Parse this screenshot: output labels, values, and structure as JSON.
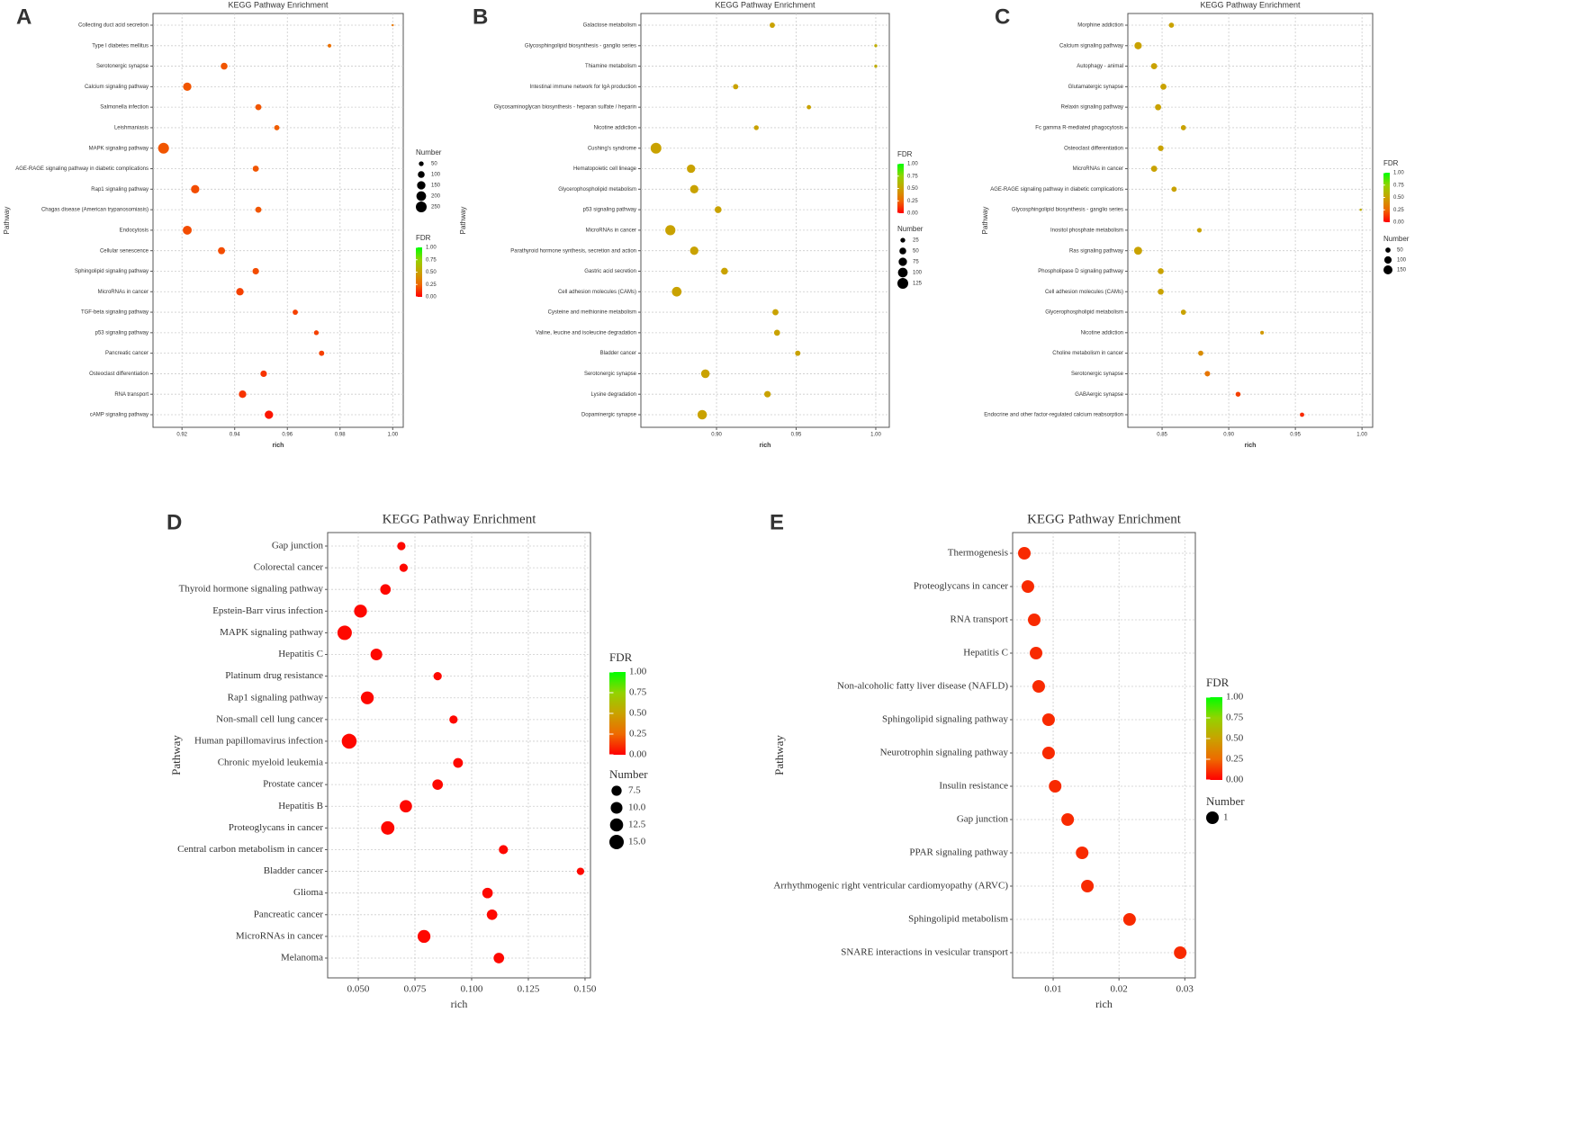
{
  "chart_data": [
    {
      "type": "scatter",
      "panel": "A",
      "title": "KEGG Pathway Enrichment",
      "xlabel": "rich",
      "ylabel": "Pathway",
      "grid": true,
      "categories": [
        "Collecting duct acid secretion",
        "Type I diabetes mellitus",
        "Serotonergic synapse",
        "Calcium signaling pathway",
        "Salmonella infection",
        "Leishmaniasis",
        "MAPK signaling pathway",
        "AGE-RAGE signaling pathway in diabetic complications",
        "Rap1 signaling pathway",
        "Chagas disease (American trypanosomiasis)",
        "Endocytosis",
        "Cellular senescence",
        "Sphingolipid signaling pathway",
        "MicroRNAs in cancer",
        "TGF-beta signaling pathway",
        "p53 signaling pathway",
        "Pancreatic cancer",
        "Osteoclast differentiation",
        "RNA transport",
        "cAMP signaling pathway"
      ],
      "values": [
        1.0,
        0.976,
        0.936,
        0.922,
        0.949,
        0.956,
        0.913,
        0.948,
        0.925,
        0.949,
        0.922,
        0.935,
        0.948,
        0.942,
        0.963,
        0.971,
        0.973,
        0.951,
        0.943,
        0.953
      ],
      "sizes": [
        10,
        30,
        100,
        150,
        80,
        60,
        250,
        80,
        150,
        80,
        170,
        110,
        90,
        120,
        60,
        50,
        60,
        90,
        120,
        150
      ],
      "fdr": [
        0.3,
        0.28,
        0.2,
        0.2,
        0.2,
        0.22,
        0.2,
        0.2,
        0.18,
        0.2,
        0.18,
        0.18,
        0.18,
        0.15,
        0.15,
        0.15,
        0.15,
        0.12,
        0.12,
        0.05
      ],
      "xlim": [
        0.909,
        1.004
      ],
      "xticks": [
        0.92,
        0.94,
        0.96,
        0.98,
        {
          "value": 1,
          "label": "1.00"
        }
      ],
      "fdr_legend": {
        "title": "FDR",
        "lim": [
          0,
          1
        ],
        "ticks": [
          {
            "value": 0,
            "label": "0.00"
          },
          0.25,
          {
            "value": 0.5,
            "label": "0.50"
          },
          0.75,
          {
            "value": 1,
            "label": "1.00"
          }
        ]
      },
      "size_legend": {
        "title": "Number",
        "ticks": [
          50,
          100,
          150,
          200,
          250
        ]
      },
      "fdr_colors": [
        "#ff0000",
        "#ee6a00",
        "#c9a200",
        "#93d300",
        "#00ff00"
      ]
    },
    {
      "type": "scatter",
      "panel": "B",
      "title": "KEGG Pathway Enrichment",
      "xlabel": "rich",
      "ylabel": "Pathway",
      "grid": true,
      "categories": [
        "Galactose metabolism",
        "Glycosphingolipid biosynthesis - ganglio series",
        "Thiamine metabolism",
        "Intestinal immune network for IgA production",
        "Glycosaminoglycan biosynthesis - heparan sulfate / heparin",
        "Nicotine addiction",
        "Cushing's syndrome",
        "Hematopoietic cell lineage",
        "Glycerophospholipid metabolism",
        "p53 signaling pathway",
        "MicroRNAs in cancer",
        "Parathyroid hormone synthesis, secretion and action",
        "Gastric acid secretion",
        "Cell adhesion molecules (CAMs)",
        "Cysteine and methionine metabolism",
        "Valine, leucine and isoleucine degradation",
        "Bladder cancer",
        "Serotonergic synapse",
        "Lysine degradation",
        "Dopaminergic synapse"
      ],
      "values": [
        0.935,
        1.0,
        1.0,
        0.912,
        0.958,
        0.925,
        0.862,
        0.884,
        0.886,
        0.901,
        0.871,
        0.886,
        0.905,
        0.875,
        0.937,
        0.938,
        0.951,
        0.893,
        0.932,
        0.891
      ],
      "sizes": [
        30,
        10,
        10,
        30,
        20,
        25,
        125,
        75,
        75,
        50,
        110,
        75,
        50,
        100,
        40,
        40,
        30,
        80,
        45,
        95
      ],
      "fdr": [
        0.5,
        0.55,
        0.55,
        0.5,
        0.5,
        0.5,
        0.5,
        0.5,
        0.5,
        0.5,
        0.5,
        0.5,
        0.5,
        0.5,
        0.5,
        0.5,
        0.5,
        0.5,
        0.5,
        0.5
      ],
      "xlim": [
        0.8525,
        1.0085
      ],
      "xticks": [
        {
          "value": 0.9,
          "label": "0.90"
        },
        0.95,
        {
          "value": 1,
          "label": "1.00"
        }
      ],
      "fdr_legend": {
        "title": "FDR",
        "lim": [
          0,
          1
        ],
        "ticks": [
          {
            "value": 0,
            "label": "0.00"
          },
          0.25,
          {
            "value": 0.5,
            "label": "0.50"
          },
          0.75,
          {
            "value": 1,
            "label": "1.00"
          }
        ]
      },
      "size_legend": {
        "title": "Number",
        "ticks": [
          25,
          50,
          75,
          100,
          125
        ]
      },
      "fdr_colors": [
        "#ff0000",
        "#ee6a00",
        "#c9a200",
        "#93d300",
        "#00ff00"
      ]
    },
    {
      "type": "scatter",
      "panel": "C",
      "title": "KEGG Pathway Enrichment",
      "xlabel": "rich",
      "ylabel": "Pathway",
      "grid": true,
      "categories": [
        "Morphine addiction",
        "Calcium signaling pathway",
        "Autophagy - animal",
        "Glutamatergic synapse",
        "Relaxin signaling pathway",
        "Fc gamma R-mediated phagocytosis",
        "Osteoclast differentiation",
        "MicroRNAs in cancer",
        "AGE-RAGE signaling pathway in diabetic complications",
        "Glycosphingolipid biosynthesis - ganglio series",
        "Inositol phosphate metabolism",
        "Ras signaling pathway",
        "Phospholipase D signaling pathway",
        "Cell adhesion molecules (CAMs)",
        "Glycerophospholipid metabolism",
        "Nicotine addiction",
        "Choline metabolism in cancer",
        "Serotonergic synapse",
        "GABAergic synapse",
        "Endocrine and other factor-regulated calcium reabsorption"
      ],
      "values": [
        0.857,
        0.832,
        0.844,
        0.851,
        0.847,
        0.866,
        0.849,
        0.844,
        0.859,
        0.999,
        0.878,
        0.832,
        0.849,
        0.849,
        0.866,
        0.925,
        0.879,
        0.884,
        0.907,
        0.955
      ],
      "sizes": [
        50,
        100,
        70,
        70,
        70,
        50,
        60,
        70,
        50,
        10,
        40,
        120,
        65,
        65,
        50,
        25,
        50,
        55,
        45,
        35
      ],
      "fdr": [
        0.5,
        0.5,
        0.5,
        0.5,
        0.5,
        0.5,
        0.5,
        0.5,
        0.5,
        0.55,
        0.5,
        0.5,
        0.5,
        0.5,
        0.5,
        0.45,
        0.4,
        0.3,
        0.15,
        0.1
      ],
      "xlim": [
        0.8243,
        1.008
      ],
      "xticks": [
        0.85,
        {
          "value": 0.9,
          "label": "0.90"
        },
        0.95,
        {
          "value": 1,
          "label": "1.00"
        }
      ],
      "fdr_legend": {
        "title": "FDR",
        "lim": [
          0,
          1
        ],
        "ticks": [
          {
            "value": 0,
            "label": "0.00"
          },
          0.25,
          {
            "value": 0.5,
            "label": "0.50"
          },
          0.75,
          {
            "value": 1,
            "label": "1.00"
          }
        ]
      },
      "size_legend": {
        "title": "Number",
        "ticks": [
          50,
          100,
          150
        ]
      },
      "fdr_colors": [
        "#ff0000",
        "#ee6a00",
        "#c9a200",
        "#93d300",
        "#00ff00"
      ]
    },
    {
      "type": "scatter",
      "panel": "D",
      "title": "KEGG Pathway Enrichment",
      "xlabel": "rich",
      "ylabel": "Pathway",
      "grid": true,
      "categories": [
        "Gap junction",
        "Colorectal cancer",
        "Thyroid hormone signaling pathway",
        "Epstein-Barr virus infection",
        "MAPK signaling pathway",
        "Hepatitis C",
        "Platinum drug resistance",
        "Rap1 signaling pathway",
        "Non-small cell lung cancer",
        "Human papillomavirus infection",
        "Chronic myeloid leukemia",
        "Prostate cancer",
        "Hepatitis B",
        "Proteoglycans in cancer",
        "Central carbon metabolism in cancer",
        "Bladder cancer",
        "Glioma",
        "Pancreatic cancer",
        "MicroRNAs in cancer",
        "Melanoma"
      ],
      "values": [
        0.069,
        0.07,
        0.062,
        0.051,
        0.044,
        0.058,
        0.085,
        0.054,
        0.092,
        0.046,
        0.094,
        0.085,
        0.071,
        0.063,
        0.114,
        0.148,
        0.107,
        0.109,
        0.079,
        0.112
      ],
      "sizes": [
        5,
        5,
        8,
        12,
        15,
        10,
        5,
        12,
        5,
        16,
        7,
        8,
        11,
        13,
        6,
        4,
        8,
        8,
        12,
        8
      ],
      "fdr": [
        0.02,
        0.02,
        0.02,
        0.02,
        0.02,
        0.02,
        0.02,
        0.02,
        0.02,
        0.02,
        0.02,
        0.02,
        0.02,
        0.02,
        0.02,
        0.02,
        0.02,
        0.02,
        0.02,
        0.02
      ],
      "xlim": [
        0.0365,
        0.1524
      ],
      "xticks": [
        {
          "value": 0.05,
          "label": "0.050"
        },
        0.075,
        {
          "value": 0.1,
          "label": "0.100"
        },
        0.125,
        {
          "value": 0.15,
          "label": "0.150"
        }
      ],
      "fdr_legend": {
        "title": "FDR",
        "lim": [
          0,
          1
        ],
        "ticks": [
          {
            "value": 0,
            "label": "0.00"
          },
          0.25,
          {
            "value": 0.5,
            "label": "0.50"
          },
          0.75,
          {
            "value": 1,
            "label": "1.00"
          }
        ]
      },
      "size_legend": {
        "title": "Number",
        "ticks": [
          7.5,
          {
            "value": 10,
            "label": "10.0"
          },
          12.5,
          {
            "value": 15,
            "label": "15.0"
          }
        ]
      },
      "fdr_colors": [
        "#ff0000",
        "#ee6a00",
        "#c9a200",
        "#93d300",
        "#00ff00"
      ]
    },
    {
      "type": "scatter",
      "panel": "E",
      "title": "KEGG Pathway Enrichment",
      "xlabel": "rich",
      "ylabel": "Pathway",
      "grid": true,
      "categories": [
        "Thermogenesis",
        "Proteoglycans in cancer",
        "RNA transport",
        "Hepatitis C",
        "Non-alcoholic fatty liver disease (NAFLD)",
        "Sphingolipid signaling pathway",
        "Neurotrophin signaling pathway",
        "Insulin resistance",
        "Gap junction",
        "PPAR signaling pathway",
        "Arrhythmogenic right ventricular cardiomyopathy (ARVC)",
        "Sphingolipid metabolism",
        "SNARE interactions in vesicular transport"
      ],
      "values": [
        0.00562,
        0.00616,
        0.00712,
        0.0074,
        0.0078,
        0.0093,
        0.0093,
        0.0103,
        0.0122,
        0.0144,
        0.0152,
        0.0216,
        0.0293
      ],
      "sizes": [
        1,
        1,
        1,
        1,
        1,
        1,
        1,
        1,
        1,
        1,
        1,
        1,
        1
      ],
      "fdr": [
        0.1,
        0.1,
        0.1,
        0.1,
        0.1,
        0.1,
        0.1,
        0.1,
        0.1,
        0.1,
        0.1,
        0.1,
        0.1
      ],
      "xlim": [
        0.00384,
        0.0316
      ],
      "xticks": [
        0.01,
        0.02,
        0.03
      ],
      "fdr_legend": {
        "title": "FDR",
        "lim": [
          0,
          1
        ],
        "ticks": [
          {
            "value": 0,
            "label": "0.00"
          },
          0.25,
          {
            "value": 0.5,
            "label": "0.50"
          },
          0.75,
          {
            "value": 1,
            "label": "1.00"
          }
        ]
      },
      "size_legend": {
        "title": "Number",
        "ticks": [
          1
        ]
      },
      "fdr_colors": [
        "#ff0000",
        "#ee6a00",
        "#c9a200",
        "#93d300",
        "#00ff00"
      ]
    }
  ]
}
